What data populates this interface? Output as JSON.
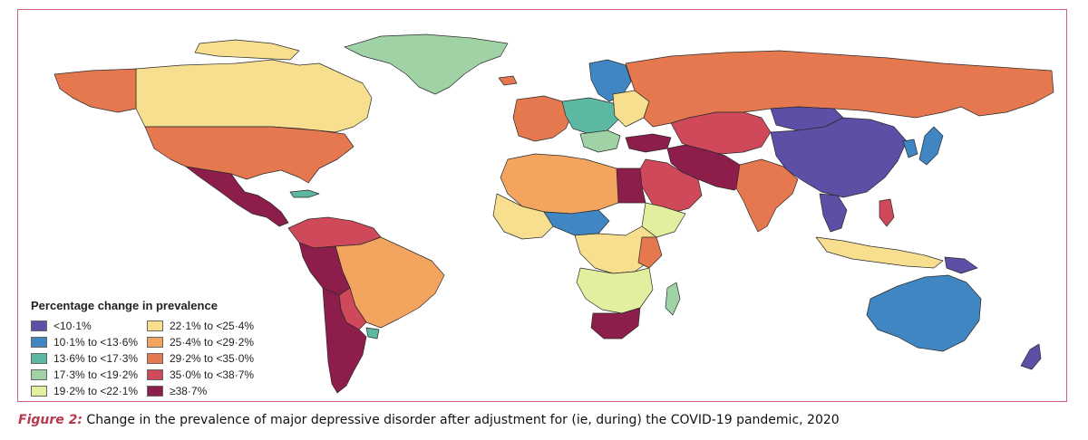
{
  "legend": {
    "title": "Percentage change in prevalence",
    "items": [
      {
        "label": "<10·1%",
        "color": "#5b4fa6"
      },
      {
        "label": "10·1% to <13·6%",
        "color": "#3f86c2"
      },
      {
        "label": "13·6% to <17·3%",
        "color": "#5cb8a3"
      },
      {
        "label": "17·3% to <19·2%",
        "color": "#9fd3a5"
      },
      {
        "label": "19·2% to <22·1%",
        "color": "#e3ee9f"
      },
      {
        "label": "22·1% to <25·4%",
        "color": "#f8df90"
      },
      {
        "label": "25·4% to <29·2%",
        "color": "#f3a55f"
      },
      {
        "label": "29·2% to <35·0%",
        "color": "#e5784f"
      },
      {
        "label": "35·0% to <38·7%",
        "color": "#d0495b"
      },
      {
        "label": "≥38·7%",
        "color": "#8d1d4a"
      }
    ]
  },
  "caption": {
    "label": "Figure 2:",
    "text": " Change in the prevalence of major depressive disorder after adjustment for (ie, during) the COVID-19 pandemic, 2020"
  }
}
